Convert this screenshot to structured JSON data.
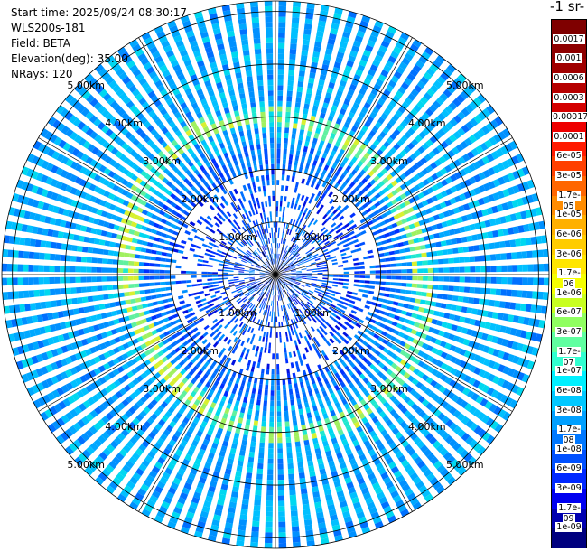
{
  "info": {
    "start_time": "Start time: 2025/09/24 08:30:17",
    "device": "WLS200s-181",
    "field": "Field: BETA",
    "elevation": "Elevation(deg): 35.00",
    "nrays": "NRays: 120"
  },
  "colorbar": {
    "unit_label": "-1 sr-",
    "ticks": [
      "0.0017",
      "0.001",
      "0.0006",
      "0.0003",
      "0.00017",
      "0.0001",
      "6e-05",
      "3e-05",
      "1.7e-05",
      "1e-05",
      "6e-06",
      "3e-06",
      "1.7e-06",
      "1e-06",
      "6e-07",
      "3e-07",
      "1.7e-07",
      "1e-07",
      "6e-08",
      "3e-08",
      "1.7e-08",
      "1e-08",
      "6e-09",
      "3e-09",
      "1.7e-09",
      "1e-09"
    ],
    "colors": [
      "#7f0000",
      "#8e0000",
      "#a00000",
      "#b60000",
      "#d40000",
      "#ee0000",
      "#ff1a00",
      "#ff4000",
      "#ff6600",
      "#ff8c00",
      "#ffb000",
      "#ffcc00",
      "#ffe600",
      "#f5ff00",
      "#c8ff20",
      "#90ff60",
      "#60ffa0",
      "#30ffd0",
      "#00f0ff",
      "#00c8ff",
      "#00a0ff",
      "#0078ff",
      "#0050ff",
      "#0028ff",
      "#0000f0",
      "#0000b0",
      "#00007f"
    ]
  },
  "range_labels": [
    "1.00km",
    "2.00km",
    "3.00km",
    "4.00km",
    "5.00km"
  ],
  "scan": {
    "n_rays": 120,
    "ring_ranges_km": [
      1,
      2,
      3,
      4,
      5
    ],
    "max_range_km": 5.2,
    "aerosol_layer_range_km": 2.9
  }
}
